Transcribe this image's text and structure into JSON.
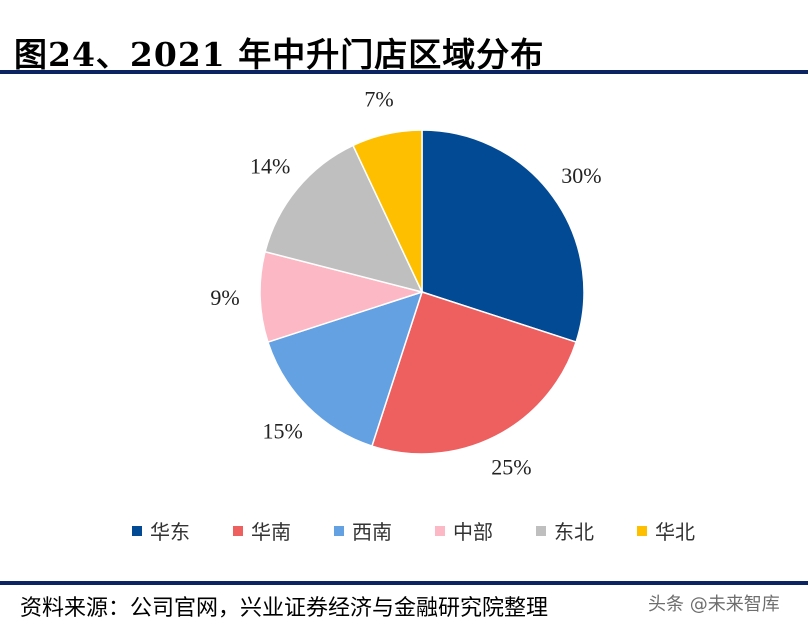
{
  "title": "图24、2021 年中升门店区域分布",
  "source": "资料来源：公司官网，兴业证券经济与金融研究院整理",
  "watermark": "头条 @未来智库",
  "chart_data": {
    "type": "pie",
    "title": "图24、2021 年中升门店区域分布",
    "legend_position": "bottom",
    "categories": [
      "华东",
      "华南",
      "西南",
      "中部",
      "东北",
      "华北"
    ],
    "values": [
      30,
      25,
      15,
      9,
      14,
      7
    ],
    "labels": [
      "30%",
      "25%",
      "15%",
      "9%",
      "14%",
      "7%"
    ],
    "colors": [
      "#034a94",
      "#ee5f5f",
      "#64a1e3",
      "#fcb8c4",
      "#bfbfbf",
      "#fdbf00"
    ],
    "start_angle": "top",
    "direction": "clockwise"
  }
}
